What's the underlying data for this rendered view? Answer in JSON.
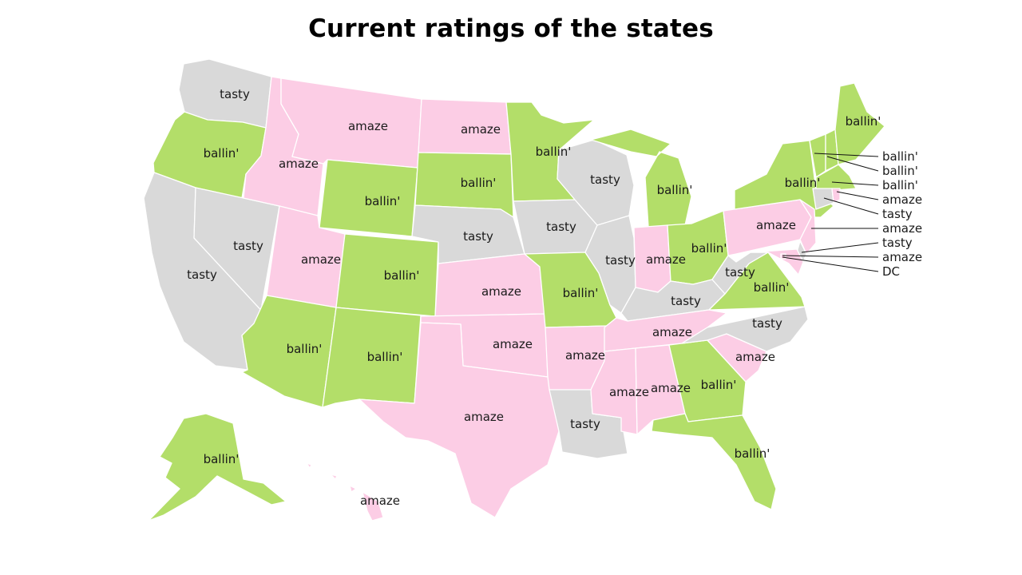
{
  "title": "Current ratings of the states",
  "colors": {
    "ballin": "#b3de69",
    "amaze": "#fccde5",
    "tasty": "#d9d9d9"
  },
  "states": {
    "WA": "tasty",
    "OR": "ballin'",
    "CA": "tasty",
    "NV": "tasty",
    "ID": "amaze",
    "MT": "amaze",
    "WY": "ballin'",
    "UT": "amaze",
    "AZ": "ballin'",
    "CO": "ballin'",
    "NM": "ballin'",
    "ND": "amaze",
    "SD": "ballin'",
    "NE": "tasty",
    "KS": "amaze",
    "OK": "amaze",
    "TX": "amaze",
    "MN": "ballin'",
    "IA": "tasty",
    "MO": "ballin'",
    "AR": "amaze",
    "LA": "tasty",
    "WI": "tasty",
    "IL": "tasty",
    "MI": "ballin'",
    "IN": "amaze",
    "OH": "ballin'",
    "KY": "tasty",
    "TN": "amaze",
    "MS": "amaze",
    "AL": "amaze",
    "GA": "ballin'",
    "FL": "ballin'",
    "SC": "amaze",
    "NC": "tasty",
    "VA": "ballin'",
    "WV": "tasty",
    "PA": "amaze",
    "NY": "ballin'",
    "ME": "ballin'",
    "AK": "ballin'",
    "HI": "amaze",
    "VT": "ballin'",
    "NH": "ballin'",
    "MA": "ballin'",
    "RI": "amaze",
    "CT": "tasty",
    "NJ": "amaze",
    "DE": "tasty",
    "MD": "amaze",
    "DC": "DC"
  }
}
